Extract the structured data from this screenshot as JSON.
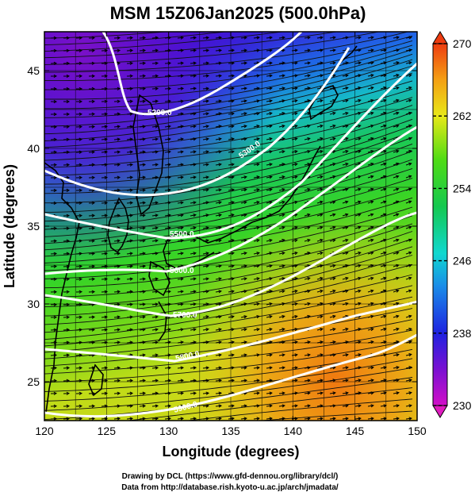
{
  "title": "MSM 15Z06Jan2025 (500.0hPa)",
  "xlabel": "Longitude (degrees)",
  "ylabel": "Latitude  (degrees)",
  "xticks": [
    "120",
    "125",
    "130",
    "135",
    "140",
    "145",
    "150"
  ],
  "yticks": [
    "25",
    "30",
    "35",
    "40",
    "45"
  ],
  "colorbar": {
    "ticks": [
      "270",
      "262",
      "254",
      "246",
      "238",
      "230"
    ],
    "min": 230,
    "max": 270
  },
  "contour_labels": [
    "5200.0",
    "5300.0",
    "5500.0",
    "5600.0",
    "5700.0",
    "5800.0",
    "5900.0"
  ],
  "credits": [
    "Drawing by DCL (https://www.gfd-dennou.org/library/dcl/)",
    "Data from http://database.rish.kyoto-u.ac.jp/arch/jmadata/"
  ],
  "chart_data": {
    "type": "heatmap",
    "variable": "temperature",
    "level": "500.0hPa",
    "xlim": [
      120,
      150
    ],
    "ylim": [
      22.5,
      47.5
    ],
    "color_range": [
      230,
      270
    ],
    "height_contours": [
      5200,
      5300,
      5500,
      5600,
      5700,
      5800,
      5900
    ],
    "overlays": [
      "streamlines",
      "wind vectors",
      "height contours",
      "coastlines"
    ]
  }
}
